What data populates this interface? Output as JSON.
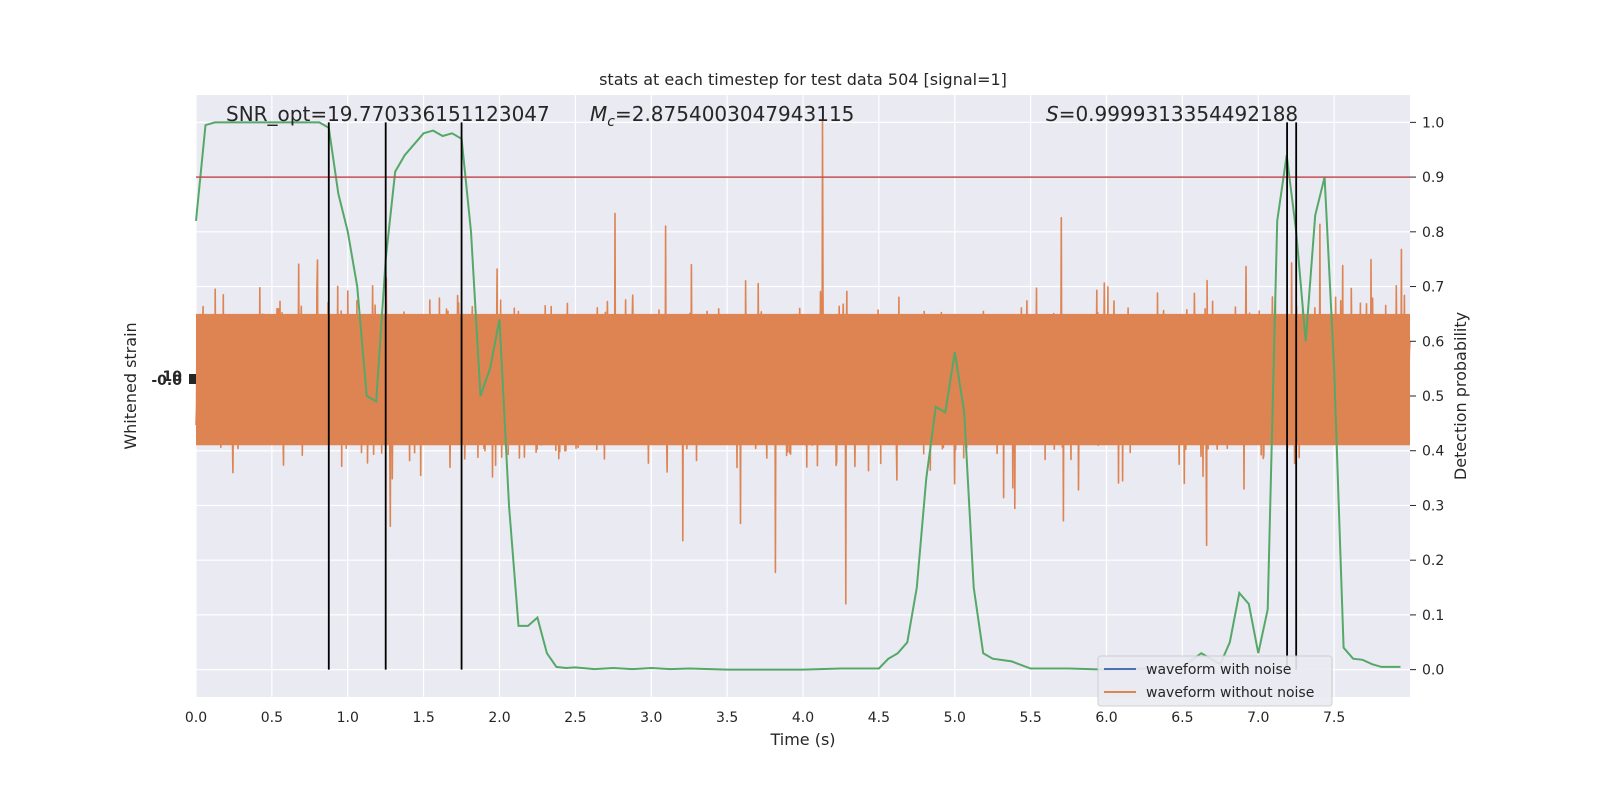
{
  "chart_data": {
    "type": "line",
    "title": "stats at each timestep for test data 504 [signal=1]",
    "xlabel": "Time (s)",
    "ylabel_left": "Whitened strain",
    "ylabel_right": "Detection probability",
    "xlim": [
      0.0,
      8.0
    ],
    "ylim_right": [
      -0.05,
      1.05
    ],
    "xticks": [
      "0.0",
      "0.5",
      "1.0",
      "1.5",
      "2.0",
      "2.5",
      "3.0",
      "3.5",
      "4.0",
      "4.5",
      "5.0",
      "5.5",
      "6.0",
      "6.5",
      "7.0",
      "7.5"
    ],
    "yticks_right": [
      "0.0",
      "0.1",
      "0.2",
      "0.3",
      "0.4",
      "0.5",
      "0.6",
      "0.7",
      "0.8",
      "0.9",
      "1.0"
    ],
    "grid": true,
    "stats": {
      "snr": "SNR_opt=19.770336151123047",
      "mc_symbol": "M",
      "mc_sub": "c",
      "mc_value": "=2.8754003047943115",
      "s_symbol": "S",
      "s_value": "=0.9999313354492188"
    },
    "threshold": 0.9,
    "vlines_x": [
      0.875,
      1.25,
      1.75,
      7.19,
      7.25
    ],
    "legend_position": "lower-right",
    "series": [
      {
        "name": "waveform with noise",
        "color": "#4c72b0"
      },
      {
        "name": "waveform without noise",
        "color": "#dd8452"
      },
      {
        "color": "#55a868",
        "x": [
          0.0,
          0.0625,
          0.125,
          0.1875,
          0.25,
          0.3125,
          0.375,
          0.4375,
          0.5,
          0.5625,
          0.625,
          0.6875,
          0.75,
          0.8125,
          0.875,
          0.9375,
          1.0,
          1.0625,
          1.125,
          1.1875,
          1.25,
          1.3125,
          1.375,
          1.4375,
          1.5,
          1.5625,
          1.625,
          1.6875,
          1.75,
          1.8125,
          1.875,
          1.9375,
          2.0,
          2.0625,
          2.125,
          2.1875,
          2.25,
          2.3125,
          2.375,
          2.4375,
          2.5,
          2.625,
          2.75,
          2.875,
          3.0,
          3.125,
          3.25,
          3.5,
          3.75,
          4.0,
          4.25,
          4.5,
          4.5625,
          4.625,
          4.6875,
          4.75,
          4.8125,
          4.875,
          4.9375,
          5.0,
          5.0625,
          5.125,
          5.1875,
          5.25,
          5.375,
          5.5,
          5.75,
          6.0,
          6.25,
          6.5,
          6.625,
          6.6875,
          6.75,
          6.8125,
          6.875,
          6.9375,
          7.0,
          7.0625,
          7.125,
          7.1875,
          7.25,
          7.3125,
          7.375,
          7.4375,
          7.5,
          7.5625,
          7.625,
          7.6875,
          7.75,
          7.8125,
          7.875,
          7.9375
        ],
        "y": [
          0.82,
          0.995,
          1.0,
          1.0,
          1.0,
          1.0,
          1.0,
          1.0,
          1.0,
          1.0,
          1.0,
          1.0,
          1.0,
          1.0,
          0.99,
          0.87,
          0.8,
          0.7,
          0.5,
          0.49,
          0.75,
          0.91,
          0.94,
          0.96,
          0.98,
          0.985,
          0.975,
          0.98,
          0.97,
          0.8,
          0.5,
          0.55,
          0.64,
          0.3,
          0.08,
          0.08,
          0.095,
          0.03,
          0.005,
          0.003,
          0.004,
          0.001,
          0.003,
          0.001,
          0.003,
          0.001,
          0.002,
          0.0,
          0.0,
          0.0,
          0.002,
          0.002,
          0.02,
          0.03,
          0.05,
          0.15,
          0.35,
          0.48,
          0.47,
          0.58,
          0.47,
          0.15,
          0.03,
          0.02,
          0.015,
          0.002,
          0.002,
          0.0,
          0.002,
          0.005,
          0.03,
          0.02,
          0.01,
          0.05,
          0.14,
          0.12,
          0.03,
          0.11,
          0.82,
          0.94,
          0.8,
          0.6,
          0.83,
          0.9,
          0.55,
          0.04,
          0.02,
          0.018,
          0.01,
          0.005,
          0.005,
          0.005
        ]
      }
    ]
  }
}
